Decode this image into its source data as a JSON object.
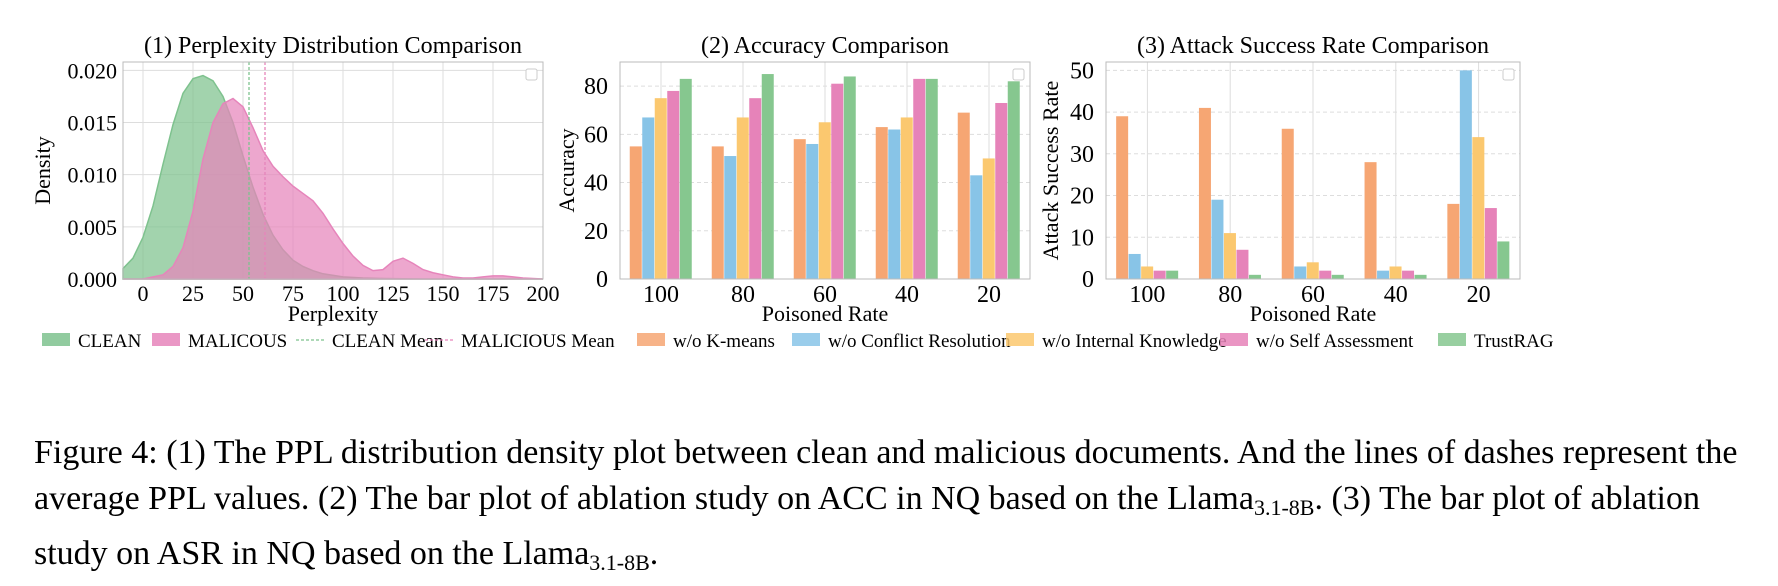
{
  "colors": {
    "clean": "#7ec28e",
    "malicious": "#e685bb",
    "kmeans": "#f6a673",
    "conflict": "#88c4e7",
    "internal": "#fbc86f",
    "self": "#e683b9",
    "trustrag": "#86c78f",
    "grid": "#dddddd",
    "axis": "#bbbbbb"
  },
  "chart_data": [
    {
      "type": "area",
      "title": "(1) Perplexity Distribution Comparison",
      "xlabel": "Perplexity",
      "ylabel": "Density",
      "xlim": [
        -10,
        200
      ],
      "ylim": [
        0,
        0.0208
      ],
      "xticks": [
        0,
        25,
        50,
        75,
        100,
        125,
        150,
        175,
        200
      ],
      "yticks": [
        0.0,
        0.005,
        0.01,
        0.015,
        0.02
      ],
      "ytick_labels": [
        "0.000",
        "0.005",
        "0.010",
        "0.015",
        "0.020"
      ],
      "series": [
        {
          "name": "CLEAN",
          "x": [
            -10,
            -5,
            0,
            5,
            10,
            15,
            20,
            25,
            30,
            35,
            40,
            45,
            50,
            55,
            60,
            65,
            70,
            75,
            80,
            85,
            90,
            100,
            110,
            120,
            130,
            140,
            150,
            160,
            175,
            200
          ],
          "y": [
            0.001,
            0.002,
            0.004,
            0.007,
            0.011,
            0.0148,
            0.0178,
            0.0192,
            0.0195,
            0.019,
            0.0175,
            0.015,
            0.0118,
            0.0088,
            0.0062,
            0.0042,
            0.0028,
            0.0018,
            0.0012,
            0.0008,
            0.0005,
            0.0002,
            0.0001,
            5e-05,
            2e-05,
            0.0,
            0.0,
            0.0,
            0.0,
            0.0
          ]
        },
        {
          "name": "MALICOUS",
          "x": [
            -10,
            0,
            10,
            15,
            20,
            25,
            30,
            35,
            40,
            45,
            50,
            55,
            60,
            65,
            70,
            75,
            80,
            85,
            90,
            95,
            100,
            105,
            110,
            115,
            120,
            125,
            130,
            135,
            140,
            145,
            150,
            155,
            160,
            165,
            170,
            175,
            180,
            185,
            190,
            200
          ],
          "y": [
            0.0,
            0.0,
            0.0004,
            0.0012,
            0.003,
            0.0065,
            0.0115,
            0.015,
            0.0168,
            0.0173,
            0.0165,
            0.0145,
            0.0123,
            0.0108,
            0.0098,
            0.0089,
            0.0082,
            0.0075,
            0.0063,
            0.0048,
            0.0034,
            0.0022,
            0.0013,
            0.0008,
            0.0009,
            0.0017,
            0.002,
            0.0015,
            0.0009,
            0.0006,
            0.0004,
            0.0002,
            0.0001,
            0.0001,
            0.0002,
            0.0003,
            0.0003,
            0.0002,
            0.0001,
            0.0
          ]
        }
      ],
      "mean_lines": [
        {
          "name": "CLEAN Mean",
          "x": 53
        },
        {
          "name": "MALICIOUS Mean",
          "x": 61
        }
      ]
    },
    {
      "type": "bar",
      "title": "(2) Accuracy Comparison",
      "xlabel": "Poisoned Rate",
      "ylabel": "Accuracy",
      "categories": [
        "100",
        "80",
        "60",
        "40",
        "20"
      ],
      "ylim": [
        0,
        90
      ],
      "yticks": [
        0,
        20,
        40,
        60,
        80
      ],
      "series": [
        {
          "name": "w/o K-means",
          "values": [
            55,
            55,
            58,
            63,
            69
          ]
        },
        {
          "name": "w/o Conflict Resolution",
          "values": [
            67,
            51,
            56,
            62,
            43
          ]
        },
        {
          "name": "w/o Internal Knowledge",
          "values": [
            75,
            67,
            65,
            67,
            50
          ]
        },
        {
          "name": "w/o Self Assessment",
          "values": [
            78,
            75,
            81,
            83,
            73
          ]
        },
        {
          "name": "TrustRAG",
          "values": [
            83,
            85,
            84,
            83,
            82
          ]
        }
      ]
    },
    {
      "type": "bar",
      "title": "(3) Attack Success Rate Comparison",
      "xlabel": "Poisoned Rate",
      "ylabel": "Attack Success Rate",
      "categories": [
        "100",
        "80",
        "60",
        "40",
        "20"
      ],
      "ylim": [
        0,
        52
      ],
      "yticks": [
        0,
        10,
        20,
        30,
        40,
        50
      ],
      "series": [
        {
          "name": "w/o K-means",
          "values": [
            39,
            41,
            36,
            28,
            18
          ]
        },
        {
          "name": "w/o Conflict Resolution",
          "values": [
            6,
            19,
            3,
            2,
            50
          ]
        },
        {
          "name": "w/o Internal Knowledge",
          "values": [
            3,
            11,
            4,
            3,
            34
          ]
        },
        {
          "name": "w/o Self Assessment",
          "values": [
            2,
            7,
            2,
            2,
            17
          ]
        },
        {
          "name": "TrustRAG",
          "values": [
            2,
            1,
            1,
            1,
            9
          ]
        }
      ]
    }
  ],
  "legend": [
    {
      "label": "CLEAN",
      "kind": "patch",
      "color": "#7ec28e"
    },
    {
      "label": "MALICOUS",
      "kind": "patch",
      "color": "#e685bb"
    },
    {
      "label": "CLEAN Mean",
      "kind": "line",
      "color": "#7ec28e"
    },
    {
      "label": "MALICIOUS Mean",
      "kind": "line",
      "color": "#e685bb"
    },
    {
      "label": "w/o K-means",
      "kind": "patch",
      "color": "#f6a673"
    },
    {
      "label": "w/o Conflict Resolution",
      "kind": "patch",
      "color": "#88c4e7"
    },
    {
      "label": "w/o Internal Knowledge",
      "kind": "patch",
      "color": "#fbc86f"
    },
    {
      "label": "w/o Self Assessment",
      "kind": "patch",
      "color": "#e683b9"
    },
    {
      "label": "TrustRAG",
      "kind": "patch",
      "color": "#86c78f"
    }
  ],
  "caption": {
    "part1": "Figure 4: (1) The PPL distribution density plot between clean and malicious documents. And the lines of dashes represent the average PPL values. (2) The bar plot of ablation study on ACC in NQ based on the Llama",
    "sub1": "3.1-8B",
    "part2": ". (3) The bar plot of ablation study on ASR in NQ based on the Llama",
    "sub2": "3.1-8B",
    "part3": "."
  }
}
